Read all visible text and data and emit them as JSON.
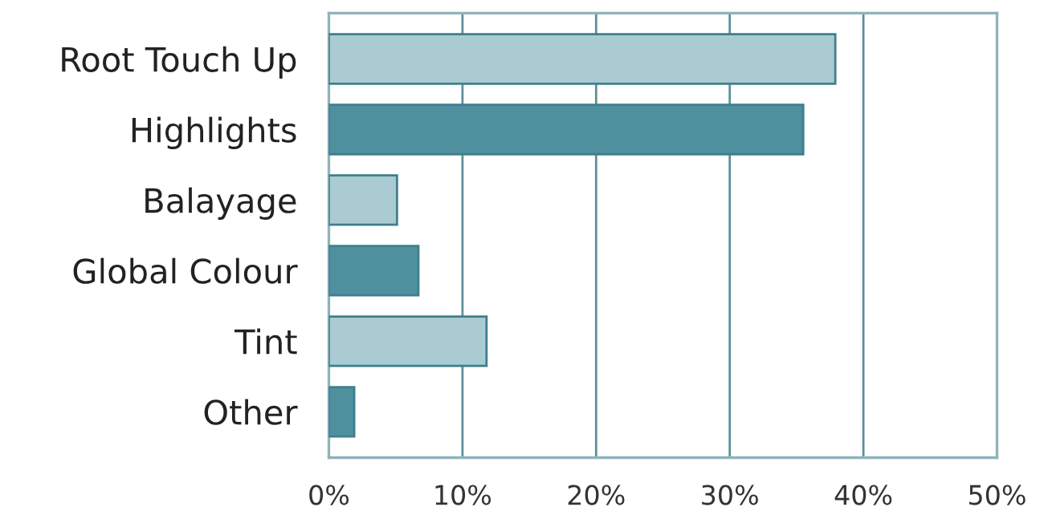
{
  "chart_data": {
    "type": "bar",
    "orientation": "horizontal",
    "categories": [
      "Root Touch Up",
      "Highlights",
      "Balayage",
      "Global Colour",
      "Tint",
      "Other"
    ],
    "values": [
      37.9,
      35.5,
      5.1,
      6.7,
      11.8,
      1.9
    ],
    "colors": [
      "#a9cbd1",
      "#4f909f",
      "#a9cbd1",
      "#4f909f",
      "#a9cbd1",
      "#4f909f"
    ],
    "xlim": [
      0,
      50
    ],
    "xticks": [
      {
        "value": 0,
        "label": "0%"
      },
      {
        "value": 10,
        "label": "10%"
      },
      {
        "value": 20,
        "label": "20%"
      },
      {
        "value": 30,
        "label": "30%"
      },
      {
        "value": 40,
        "label": "40%"
      },
      {
        "value": 50,
        "label": "50%"
      }
    ],
    "grid": "x"
  }
}
